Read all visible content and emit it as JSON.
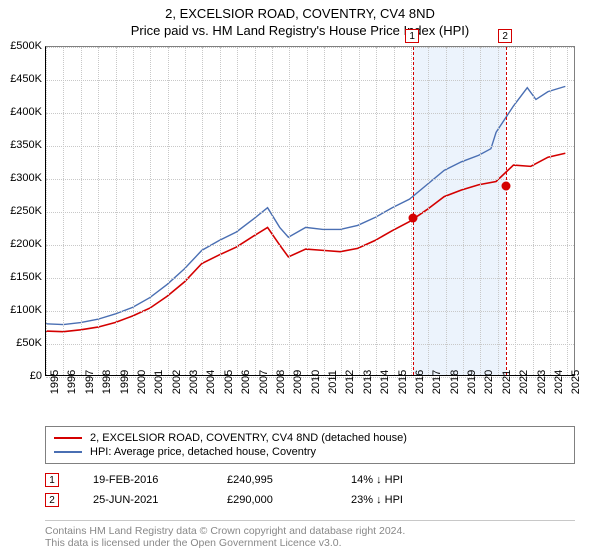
{
  "title_line1": "2, EXCELSIOR ROAD, COVENTRY, CV4 8ND",
  "title_line2": "Price paid vs. HM Land Registry's House Price Index (HPI)",
  "chart": {
    "type": "line",
    "x_min": 1995,
    "x_max": 2025.5,
    "y_min": 0,
    "y_max": 500000,
    "y_ticks": [
      0,
      50000,
      100000,
      150000,
      200000,
      250000,
      300000,
      350000,
      400000,
      450000,
      500000
    ],
    "y_tick_labels": [
      "£0",
      "£50K",
      "£100K",
      "£150K",
      "£200K",
      "£250K",
      "£300K",
      "£350K",
      "£400K",
      "£450K",
      "£500K"
    ],
    "x_ticks": [
      1995,
      1996,
      1997,
      1998,
      1999,
      2000,
      2001,
      2002,
      2003,
      2004,
      2005,
      2006,
      2007,
      2008,
      2009,
      2010,
      2011,
      2012,
      2013,
      2014,
      2015,
      2016,
      2017,
      2018,
      2019,
      2020,
      2021,
      2022,
      2023,
      2024,
      2025
    ],
    "background_color": "#ffffff",
    "grid_color": "#c8c8c8",
    "axis_font_size": 11,
    "series": [
      {
        "name": "hpi",
        "color": "#4a6fb3",
        "width": 1.4,
        "points": [
          [
            1995,
            78000
          ],
          [
            1996,
            77000
          ],
          [
            1997,
            80000
          ],
          [
            1998,
            85000
          ],
          [
            1999,
            93000
          ],
          [
            2000,
            103000
          ],
          [
            2001,
            118000
          ],
          [
            2002,
            138000
          ],
          [
            2003,
            162000
          ],
          [
            2004,
            190000
          ],
          [
            2005,
            205000
          ],
          [
            2006,
            218000
          ],
          [
            2007,
            238000
          ],
          [
            2007.8,
            255000
          ],
          [
            2008.5,
            225000
          ],
          [
            2009,
            210000
          ],
          [
            2010,
            225000
          ],
          [
            2011,
            222000
          ],
          [
            2012,
            222000
          ],
          [
            2013,
            228000
          ],
          [
            2014,
            240000
          ],
          [
            2015,
            255000
          ],
          [
            2016,
            268000
          ],
          [
            2017,
            290000
          ],
          [
            2018,
            312000
          ],
          [
            2019,
            325000
          ],
          [
            2020,
            335000
          ],
          [
            2020.7,
            345000
          ],
          [
            2021,
            370000
          ],
          [
            2022,
            410000
          ],
          [
            2022.8,
            438000
          ],
          [
            2023.3,
            420000
          ],
          [
            2024,
            432000
          ],
          [
            2025,
            440000
          ]
        ]
      },
      {
        "name": "price_paid",
        "color": "#d40000",
        "width": 1.6,
        "points": [
          [
            1995,
            67000
          ],
          [
            1996,
            66000
          ],
          [
            1997,
            69000
          ],
          [
            1998,
            73000
          ],
          [
            1999,
            80000
          ],
          [
            2000,
            90000
          ],
          [
            2001,
            102000
          ],
          [
            2002,
            120000
          ],
          [
            2003,
            142000
          ],
          [
            2004,
            170000
          ],
          [
            2005,
            183000
          ],
          [
            2006,
            195000
          ],
          [
            2007,
            212000
          ],
          [
            2007.8,
            225000
          ],
          [
            2008.5,
            198000
          ],
          [
            2009,
            180000
          ],
          [
            2010,
            192000
          ],
          [
            2011,
            190000
          ],
          [
            2012,
            188000
          ],
          [
            2013,
            193000
          ],
          [
            2014,
            205000
          ],
          [
            2015,
            220000
          ],
          [
            2016,
            234000
          ],
          [
            2017,
            252000
          ],
          [
            2018,
            272000
          ],
          [
            2019,
            282000
          ],
          [
            2020,
            290000
          ],
          [
            2021,
            295000
          ],
          [
            2022,
            320000
          ],
          [
            2023,
            318000
          ],
          [
            2024,
            332000
          ],
          [
            2025,
            338000
          ]
        ]
      }
    ],
    "shaded_regions": [
      {
        "x_start": 2016.13,
        "x_end": 2021.48,
        "color": "#ecf3fc"
      }
    ],
    "events": [
      {
        "label": "1",
        "x": 2016.13,
        "marker_y": 240995,
        "marker_color": "#d40000"
      },
      {
        "label": "2",
        "x": 2021.48,
        "marker_y": 290000,
        "marker_color": "#d40000"
      }
    ]
  },
  "legend": {
    "items": [
      {
        "color": "#d40000",
        "label": "2, EXCELSIOR ROAD, COVENTRY, CV4 8ND (detached house)"
      },
      {
        "color": "#4a6fb3",
        "label": "HPI: Average price, detached house, Coventry"
      }
    ]
  },
  "event_rows": [
    {
      "badge": "1",
      "date": "19-FEB-2016",
      "price": "£240,995",
      "delta": "14% ↓ HPI"
    },
    {
      "badge": "2",
      "date": "25-JUN-2021",
      "price": "£290,000",
      "delta": "23% ↓ HPI"
    }
  ],
  "footer": {
    "line1": "Contains HM Land Registry data © Crown copyright and database right 2024.",
    "line2": "This data is licensed under the Open Government Licence v3.0."
  }
}
